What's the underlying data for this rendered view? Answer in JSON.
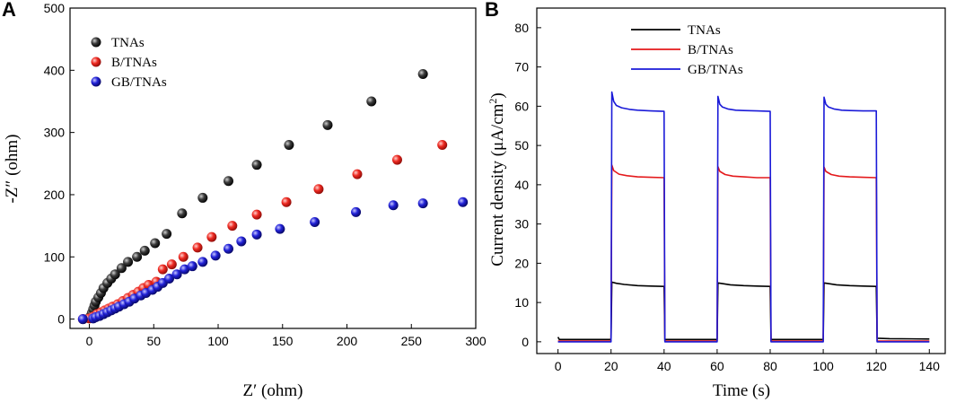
{
  "chart_data": [
    {
      "panel": "A",
      "type": "scatter",
      "xlabel": "Z′ (ohm)",
      "ylabel": "-Z″ (ohm)",
      "xlim": [
        -15,
        300
      ],
      "ylim": [
        -15,
        500
      ],
      "xticks": [
        0,
        50,
        100,
        150,
        200,
        250,
        300
      ],
      "yticks": [
        0,
        100,
        200,
        300,
        400,
        500
      ],
      "legend_position": "top-left",
      "series": [
        {
          "name": "TNAs",
          "color": "#1a1a1a",
          "points": [
            [
              -5,
              0
            ],
            [
              0,
              2
            ],
            [
              1,
              5
            ],
            [
              2,
              10
            ],
            [
              3,
              16
            ],
            [
              4,
              22
            ],
            [
              5,
              28
            ],
            [
              7,
              35
            ],
            [
              9,
              42
            ],
            [
              11,
              50
            ],
            [
              14,
              58
            ],
            [
              17,
              65
            ],
            [
              20,
              72
            ],
            [
              25,
              82
            ],
            [
              30,
              92
            ],
            [
              37,
              100
            ],
            [
              43,
              110
            ],
            [
              51,
              122
            ],
            [
              60,
              137
            ],
            [
              72,
              170
            ],
            [
              88,
              195
            ],
            [
              108,
              222
            ],
            [
              130,
              248
            ],
            [
              155,
              280
            ],
            [
              185,
              312
            ],
            [
              219,
              350
            ],
            [
              259,
              394
            ]
          ]
        },
        {
          "name": "B/TNAs",
          "color": "#e0201b",
          "points": [
            [
              -5,
              0
            ],
            [
              0,
              1
            ],
            [
              3,
              4
            ],
            [
              6,
              8
            ],
            [
              9,
              11
            ],
            [
              12,
              14
            ],
            [
              15,
              17
            ],
            [
              18,
              20
            ],
            [
              22,
              24
            ],
            [
              26,
              29
            ],
            [
              30,
              34
            ],
            [
              34,
              39
            ],
            [
              38,
              44
            ],
            [
              42,
              50
            ],
            [
              46,
              55
            ],
            [
              52,
              60
            ],
            [
              57,
              80
            ],
            [
              64,
              88
            ],
            [
              73,
              100
            ],
            [
              84,
              115
            ],
            [
              95,
              132
            ],
            [
              111,
              150
            ],
            [
              130,
              168
            ],
            [
              153,
              188
            ],
            [
              178,
              209
            ],
            [
              208,
              233
            ],
            [
              239,
              256
            ],
            [
              274,
              280
            ]
          ]
        },
        {
          "name": "GB/TNAs",
          "color": "#1c1ccc",
          "points": [
            [
              -5,
              0
            ],
            [
              3,
              1
            ],
            [
              5,
              3
            ],
            [
              8,
              5
            ],
            [
              11,
              8
            ],
            [
              14,
              11
            ],
            [
              17,
              14
            ],
            [
              20,
              17
            ],
            [
              23,
              20
            ],
            [
              27,
              24
            ],
            [
              31,
              28
            ],
            [
              35,
              33
            ],
            [
              40,
              38
            ],
            [
              44,
              42
            ],
            [
              49,
              47
            ],
            [
              53,
              52
            ],
            [
              57,
              58
            ],
            [
              62,
              65
            ],
            [
              68,
              72
            ],
            [
              74,
              80
            ],
            [
              80,
              85
            ],
            [
              88,
              92
            ],
            [
              98,
              102
            ],
            [
              108,
              113
            ],
            [
              118,
              125
            ],
            [
              130,
              136
            ],
            [
              148,
              145
            ],
            [
              175,
              156
            ],
            [
              207,
              172
            ],
            [
              236,
              183
            ],
            [
              259,
              186
            ],
            [
              290,
              188
            ]
          ]
        }
      ]
    },
    {
      "panel": "B",
      "type": "line",
      "xlabel": "Time (s)",
      "ylabel": "Current density (μA/cm",
      "ylabel_sup": "2",
      "ylabel_close": ")",
      "xlim": [
        -8,
        146
      ],
      "ylim": [
        -3,
        85
      ],
      "xticks": [
        0,
        20,
        40,
        60,
        80,
        100,
        120,
        140
      ],
      "yticks": [
        0,
        10,
        20,
        30,
        40,
        50,
        60,
        70,
        80
      ],
      "legend_position": "top-left",
      "series": [
        {
          "name": "TNAs",
          "color": "#000000",
          "points": [
            [
              0,
              1.2
            ],
            [
              0.5,
              0.6
            ],
            [
              20,
              0.6
            ],
            [
              20.3,
              15.2
            ],
            [
              22,
              14.9
            ],
            [
              25,
              14.6
            ],
            [
              30,
              14.3
            ],
            [
              35,
              14.2
            ],
            [
              40,
              14.1
            ],
            [
              40.3,
              0.6
            ],
            [
              60,
              0.6
            ],
            [
              60.3,
              15
            ],
            [
              62,
              14.8
            ],
            [
              65,
              14.5
            ],
            [
              70,
              14.3
            ],
            [
              75,
              14.2
            ],
            [
              80,
              14.1
            ],
            [
              80.3,
              0.6
            ],
            [
              100,
              0.6
            ],
            [
              100.3,
              15
            ],
            [
              102,
              14.8
            ],
            [
              105,
              14.5
            ],
            [
              110,
              14.3
            ],
            [
              115,
              14.2
            ],
            [
              120,
              14.1
            ],
            [
              120.3,
              0.9
            ],
            [
              125,
              0.8
            ],
            [
              140,
              0.7
            ]
          ]
        },
        {
          "name": "B/TNAs",
          "color": "#e41a1c",
          "points": [
            [
              0,
              0.2
            ],
            [
              20,
              0.2
            ],
            [
              20.3,
              45
            ],
            [
              21,
              43.6
            ],
            [
              23,
              42.7
            ],
            [
              26,
              42.3
            ],
            [
              30,
              42
            ],
            [
              35,
              41.9
            ],
            [
              40,
              41.8
            ],
            [
              40.3,
              0.2
            ],
            [
              60,
              0.2
            ],
            [
              60.3,
              44.6
            ],
            [
              61,
              43.4
            ],
            [
              63,
              42.6
            ],
            [
              66,
              42.2
            ],
            [
              70,
              42
            ],
            [
              75,
              41.8
            ],
            [
              80,
              41.8
            ],
            [
              80.3,
              0.2
            ],
            [
              100,
              0.2
            ],
            [
              100.3,
              44.5
            ],
            [
              101,
              43.4
            ],
            [
              103,
              42.6
            ],
            [
              106,
              42.2
            ],
            [
              110,
              42
            ],
            [
              115,
              41.9
            ],
            [
              120,
              41.8
            ],
            [
              120.3,
              0.2
            ],
            [
              140,
              0.2
            ]
          ]
        },
        {
          "name": "GB/TNAs",
          "color": "#1a1ad8",
          "points": [
            [
              0,
              0
            ],
            [
              20,
              0
            ],
            [
              20.3,
              63.6
            ],
            [
              21,
              61.2
            ],
            [
              22,
              60.2
            ],
            [
              24,
              59.6
            ],
            [
              27,
              59.2
            ],
            [
              30,
              59
            ],
            [
              35,
              58.8
            ],
            [
              40,
              58.7
            ],
            [
              40.3,
              0
            ],
            [
              60,
              0
            ],
            [
              60.3,
              62.5
            ],
            [
              61,
              60.5
            ],
            [
              62,
              59.8
            ],
            [
              64,
              59.3
            ],
            [
              67,
              59
            ],
            [
              70,
              58.9
            ],
            [
              75,
              58.8
            ],
            [
              80,
              58.7
            ],
            [
              80.3,
              0
            ],
            [
              100,
              0
            ],
            [
              100.3,
              62.3
            ],
            [
              101,
              60.5
            ],
            [
              102,
              59.8
            ],
            [
              104,
              59.3
            ],
            [
              107,
              59
            ],
            [
              110,
              58.9
            ],
            [
              115,
              58.8
            ],
            [
              120,
              58.8
            ],
            [
              120.3,
              0
            ],
            [
              140,
              0
            ]
          ]
        }
      ]
    }
  ]
}
